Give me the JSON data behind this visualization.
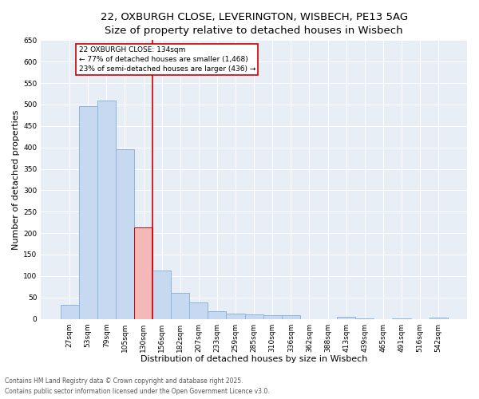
{
  "title_line1": "22, OXBURGH CLOSE, LEVERINGTON, WISBECH, PE13 5AG",
  "title_line2": "Size of property relative to detached houses in Wisbech",
  "xlabel": "Distribution of detached houses by size in Wisbech",
  "ylabel": "Number of detached properties",
  "categories": [
    "27sqm",
    "53sqm",
    "79sqm",
    "105sqm",
    "130sqm",
    "156sqm",
    "182sqm",
    "207sqm",
    "233sqm",
    "259sqm",
    "285sqm",
    "310sqm",
    "336sqm",
    "362sqm",
    "388sqm",
    "413sqm",
    "439sqm",
    "465sqm",
    "491sqm",
    "516sqm",
    "542sqm"
  ],
  "values": [
    33,
    497,
    509,
    395,
    213,
    112,
    61,
    39,
    18,
    13,
    10,
    8,
    9,
    0,
    0,
    5,
    1,
    0,
    2,
    0,
    3
  ],
  "bar_color": "#c6d9f0",
  "bar_edge_color": "#8db4d9",
  "highlight_bar_index": 4,
  "highlight_bar_color": "#f4b8b8",
  "highlight_bar_edge_color": "#cc0000",
  "vline_color": "#cc0000",
  "annotation_text": "22 OXBURGH CLOSE: 134sqm\n← 77% of detached houses are smaller (1,468)\n23% of semi-detached houses are larger (436) →",
  "annotation_box_color": "#cc0000",
  "annotation_face_color": "#ffffff",
  "ylim": [
    0,
    650
  ],
  "yticks": [
    0,
    50,
    100,
    150,
    200,
    250,
    300,
    350,
    400,
    450,
    500,
    550,
    600,
    650
  ],
  "background_color": "#e8eef6",
  "grid_color": "#ffffff",
  "footer_line1": "Contains HM Land Registry data © Crown copyright and database right 2025.",
  "footer_line2": "Contains public sector information licensed under the Open Government Licence v3.0.",
  "title_fontsize": 9.5,
  "subtitle_fontsize": 8.5,
  "tick_fontsize": 6.5,
  "axis_label_fontsize": 8,
  "footer_fontsize": 5.5
}
